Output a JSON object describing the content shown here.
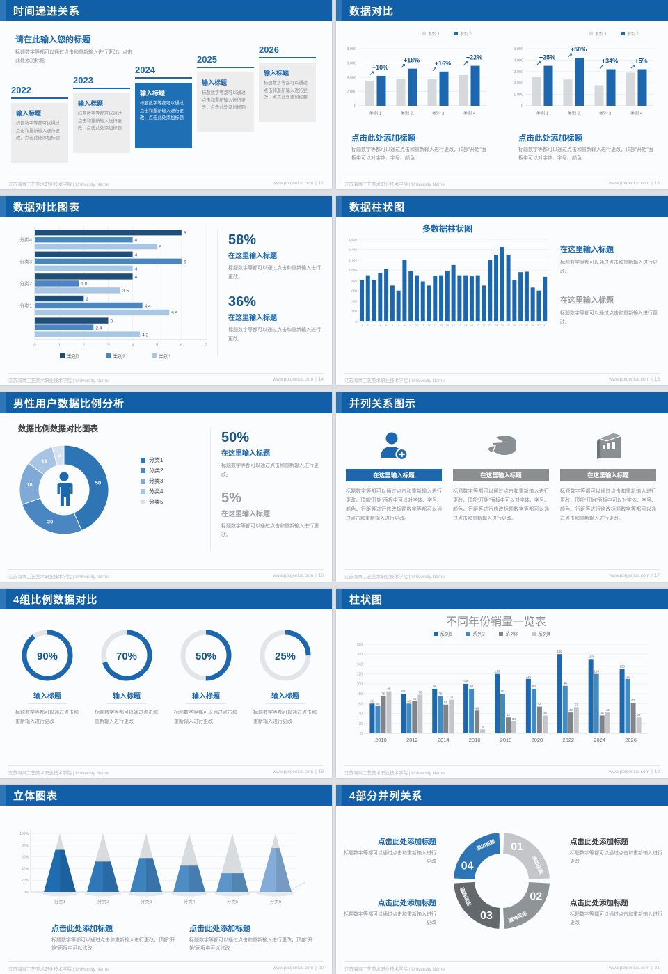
{
  "footer": {
    "org": "江苏海事工艺美术职业技术学院 | University Name",
    "site": "www.pptgenius.com",
    "sep": "|"
  },
  "theme": {
    "header_blue": "#1160a7",
    "accent_blue": "#2e75b6",
    "dark_navy": "#1f4e79",
    "gray_bar": "#d6d9dc"
  },
  "common": {
    "input_title": "输入标题",
    "enter_title": "在这里输入标题",
    "add_title": "点击此处添加标题",
    "t_change_add": "标题数字等都可以通过点击和重新输入进行更改，点击此处添加标题",
    "t_change": "标题数字等都可以通过点击和重新输入进行更改。",
    "t_change2": "标题数字等都可以通过点击和重新输入进行更改",
    "t_panel_font": "标题数字等都可以通过点击和重新输入进行更改，顶部“开始”面板中可以对字体、字号、颜色",
    "t_panel_long": "标题数字等都可以通过点击和重新输入进行更改，顶部“开始”面板中可以对字体、字号、颜色、行距等进行修改标题数字等都可以通过点击和重新输入进行更改。",
    "t_panel_modify": "标题数字等都可以通过点击和重新输入进行更改，顶部“开始”面板中可以修改"
  },
  "slides": {
    "s1": {
      "header": "时间递进关系",
      "page": "12",
      "intro_title": "请在此输入您的标题",
      "years": [
        "2022",
        "2023",
        "2024",
        "2025",
        "2026"
      ]
    },
    "s2": {
      "header": "数据对比",
      "page": "13"
    },
    "s3": {
      "header": "数据对比图表",
      "page": "14",
      "stat1_pct": "58%",
      "stat2_pct": "36%"
    },
    "s4": {
      "header": "数据柱状图",
      "page": "15",
      "chart_title": "多数据柱状图"
    },
    "s5": {
      "header": "男性用户数据比例分析",
      "page": "16",
      "chart_title": "数据比例数据对比图表",
      "stat1_pct": "50%",
      "stat2_pct": "5%"
    },
    "s6": {
      "header": "并列关系图示",
      "page": "17"
    },
    "s7": {
      "header": "4组比例数据对比",
      "page": "18"
    },
    "s8": {
      "header": "柱状图",
      "page": "19",
      "chart_title": "不同年份销量一览表"
    },
    "s9": {
      "header": "立体图表",
      "page": "20"
    },
    "s10": {
      "header": "4部分并列关系",
      "page": "21"
    }
  },
  "chart_data": [
    {
      "id": "s2a",
      "type": "bar",
      "legend": [
        "系列 1",
        "系列 2"
      ],
      "categories": [
        "类别 1",
        "类别 2",
        "类别 3",
        "类别 4"
      ],
      "series": [
        {
          "name": "系列 1",
          "color": "#d6d9dc",
          "values": [
            3500,
            3800,
            3700,
            4300
          ]
        },
        {
          "name": "系列 2",
          "color": "#1c67ad",
          "values": [
            4200,
            5200,
            4800,
            5600
          ]
        }
      ],
      "growth": [
        "+10%",
        "+18%",
        "+16%",
        "+22%"
      ],
      "ylim": [
        0,
        8000
      ],
      "yticks": [
        "0",
        "2,000",
        "4,000",
        "6,000",
        "8,000"
      ]
    },
    {
      "id": "s2b",
      "type": "bar",
      "legend": [
        "系列 1",
        "系列 2"
      ],
      "categories": [
        "类别 1",
        "类别 2",
        "类别 3",
        "类别 4"
      ],
      "series": [
        {
          "name": "系列 1",
          "color": "#d6d9dc",
          "values": [
            2500,
            2300,
            1800,
            2900
          ]
        },
        {
          "name": "系列 2",
          "color": "#1c67ad",
          "values": [
            3500,
            4200,
            3200,
            3200
          ]
        }
      ],
      "growth": [
        "+25%",
        "+50%",
        "+34%",
        "+5%"
      ],
      "ylim": [
        0,
        5000
      ],
      "yticks": [
        "0",
        "1,000",
        "2,000",
        "3,000",
        "4,000",
        "5,000"
      ]
    },
    {
      "id": "s3",
      "type": "bar",
      "orientation": "horizontal",
      "series_names": [
        "类别3",
        "类别2",
        "类别1"
      ],
      "colors": [
        "#1f4e79",
        "#4d85bd",
        "#a9c7e5"
      ],
      "groups": [
        {
          "label": "分类4",
          "values": [
            6,
            4,
            5
          ]
        },
        {
          "label": "分类3",
          "values": [
            4,
            6,
            4
          ]
        },
        {
          "label": "分类2",
          "values": [
            4,
            1.8,
            3.5
          ]
        },
        {
          "label": "分类1",
          "values": [
            2,
            4.4,
            5.5
          ]
        },
        {
          "label": "",
          "values": [
            3,
            2.4,
            4.3
          ]
        }
      ],
      "xlim": [
        0,
        7
      ],
      "xticks": [
        "0",
        "1",
        "2",
        "3",
        "4",
        "5",
        "6",
        "7"
      ]
    },
    {
      "id": "s4",
      "type": "bar",
      "title": "多数据柱状图",
      "color": "#1c67ad",
      "ylim": [
        0,
        1600
      ],
      "yticks": [
        "0",
        "200",
        "400",
        "600",
        "800",
        "1,000",
        "1,200",
        "1,400",
        "1,600"
      ],
      "xlabels": [
        "1",
        "2",
        "3",
        "4",
        "5",
        "6",
        "7",
        "8",
        "9",
        "10",
        "11",
        "12",
        "13",
        "14",
        "15",
        "16",
        "17",
        "18",
        "19",
        "20",
        "21",
        "22",
        "23",
        "24",
        "25",
        "26",
        "27",
        "28",
        "29",
        "30",
        "31"
      ],
      "values": [
        800,
        900,
        800,
        950,
        1020,
        700,
        600,
        1200,
        980,
        900,
        780,
        700,
        890,
        900,
        990,
        1100,
        900,
        900,
        880,
        900,
        700,
        1200,
        1300,
        1450,
        1300,
        810,
        960,
        970,
        660,
        600,
        870
      ]
    },
    {
      "id": "s5",
      "type": "pie",
      "title": "数据比例数据对比图表",
      "slices": [
        {
          "label": "分类1",
          "value": 50,
          "color": "#2e75b6"
        },
        {
          "label": "分类2",
          "value": 30,
          "color": "#4a86c2"
        },
        {
          "label": "分类3",
          "value": 18,
          "color": "#7fa9d6"
        },
        {
          "label": "分类4",
          "value": 12,
          "color": "#a8c4e4"
        },
        {
          "label": "分类5",
          "value": 5,
          "color": "#d3e0ef"
        }
      ]
    },
    {
      "id": "s7",
      "type": "progress",
      "values": [
        90,
        70,
        50,
        25
      ],
      "color": "#1c67ad",
      "track": "#e2e5e8"
    },
    {
      "id": "s8",
      "type": "bar",
      "title": "不同年份销量一览表",
      "categories": [
        "2010",
        "2012",
        "2014",
        "2016",
        "2018",
        "2020",
        "2022",
        "2024",
        "2026"
      ],
      "series": [
        {
          "name": "系列1",
          "color": "#1c67ad",
          "values": [
            60,
            80,
            90,
            100,
            120,
            110,
            160,
            150,
            130
          ]
        },
        {
          "name": "系列2",
          "color": "#418ac2",
          "values": [
            55,
            60,
            75,
            90,
            80,
            90,
            96,
            120,
            110
          ]
        },
        {
          "name": "系列3",
          "color": "#808488",
          "values": [
            75,
            65,
            58,
            46,
            32,
            54,
            42,
            36,
            62
          ]
        },
        {
          "name": "系列4",
          "color": "#c3c7ca",
          "values": [
            85,
            78,
            68,
            8,
            24,
            36,
            53,
            42,
            32
          ]
        }
      ],
      "ylim": [
        0,
        180
      ],
      "yticks": [
        0,
        20,
        40,
        60,
        80,
        100,
        120,
        140,
        160,
        180
      ]
    },
    {
      "id": "s9",
      "type": "cones",
      "categories": [
        "分类1",
        "分类2",
        "分类3",
        "分类4",
        "分类5",
        "分类6"
      ],
      "values": [
        72,
        52,
        58,
        45,
        32,
        75
      ],
      "colors": [
        "#1f6cb0",
        "#2e77b8",
        "#3d82bd",
        "#4f8cc4",
        "#5d95c8",
        "#85acd8"
      ],
      "yticks": [
        "0%",
        "20%",
        "40%",
        "60%",
        "80%",
        "100%"
      ]
    },
    {
      "id": "s10",
      "type": "ring",
      "segments": [
        {
          "num": "01",
          "label": "添加标题",
          "color": "#c3c7ca"
        },
        {
          "num": "02",
          "label": "添加标题",
          "color": "#8f9498"
        },
        {
          "num": "03",
          "label": "添加标题",
          "color": "#63686c"
        },
        {
          "num": "04",
          "label": "添加标题",
          "color": "#2e75b6"
        }
      ]
    }
  ]
}
